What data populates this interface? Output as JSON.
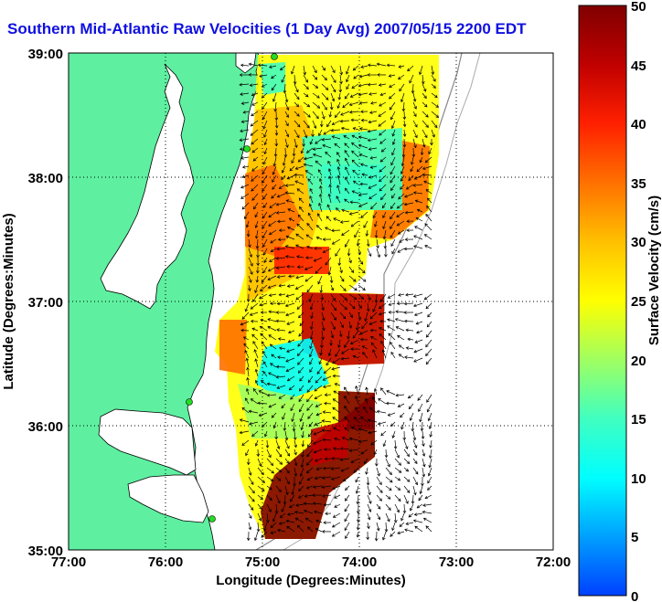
{
  "title": "Southern Mid-Atlantic Raw Velocities (1 Day Avg) 2007/05/15 2200 EDT",
  "map": {
    "lon_range": [
      -77,
      -72
    ],
    "lat_range": [
      35,
      39
    ],
    "x_ticks": [
      "77:00",
      "76:00",
      "75:00",
      "74:00",
      "73:00",
      "72:00"
    ],
    "y_ticks": [
      "35:00",
      "36:00",
      "37:00",
      "38:00",
      "39:00"
    ],
    "xlabel": "Longitude (Degrees:Minutes)",
    "ylabel": "Latitude (Degrees:Minutes)",
    "grid": "dotted",
    "land_color": "#5ef0a0",
    "water_color": "#ffffff"
  },
  "colorbar": {
    "label": "Surface Velocity (cm/s)",
    "min": 0,
    "max": 50,
    "ticks": [
      "0",
      "5",
      "10",
      "15",
      "20",
      "25",
      "30",
      "35",
      "40",
      "45",
      "50"
    ],
    "colors": [
      "#0040ff",
      "#00a0ff",
      "#00ffff",
      "#40ffc0",
      "#a0ff60",
      "#ffff00",
      "#ffc000",
      "#ff7000",
      "#ff2000",
      "#c00000",
      "#800000"
    ]
  }
}
